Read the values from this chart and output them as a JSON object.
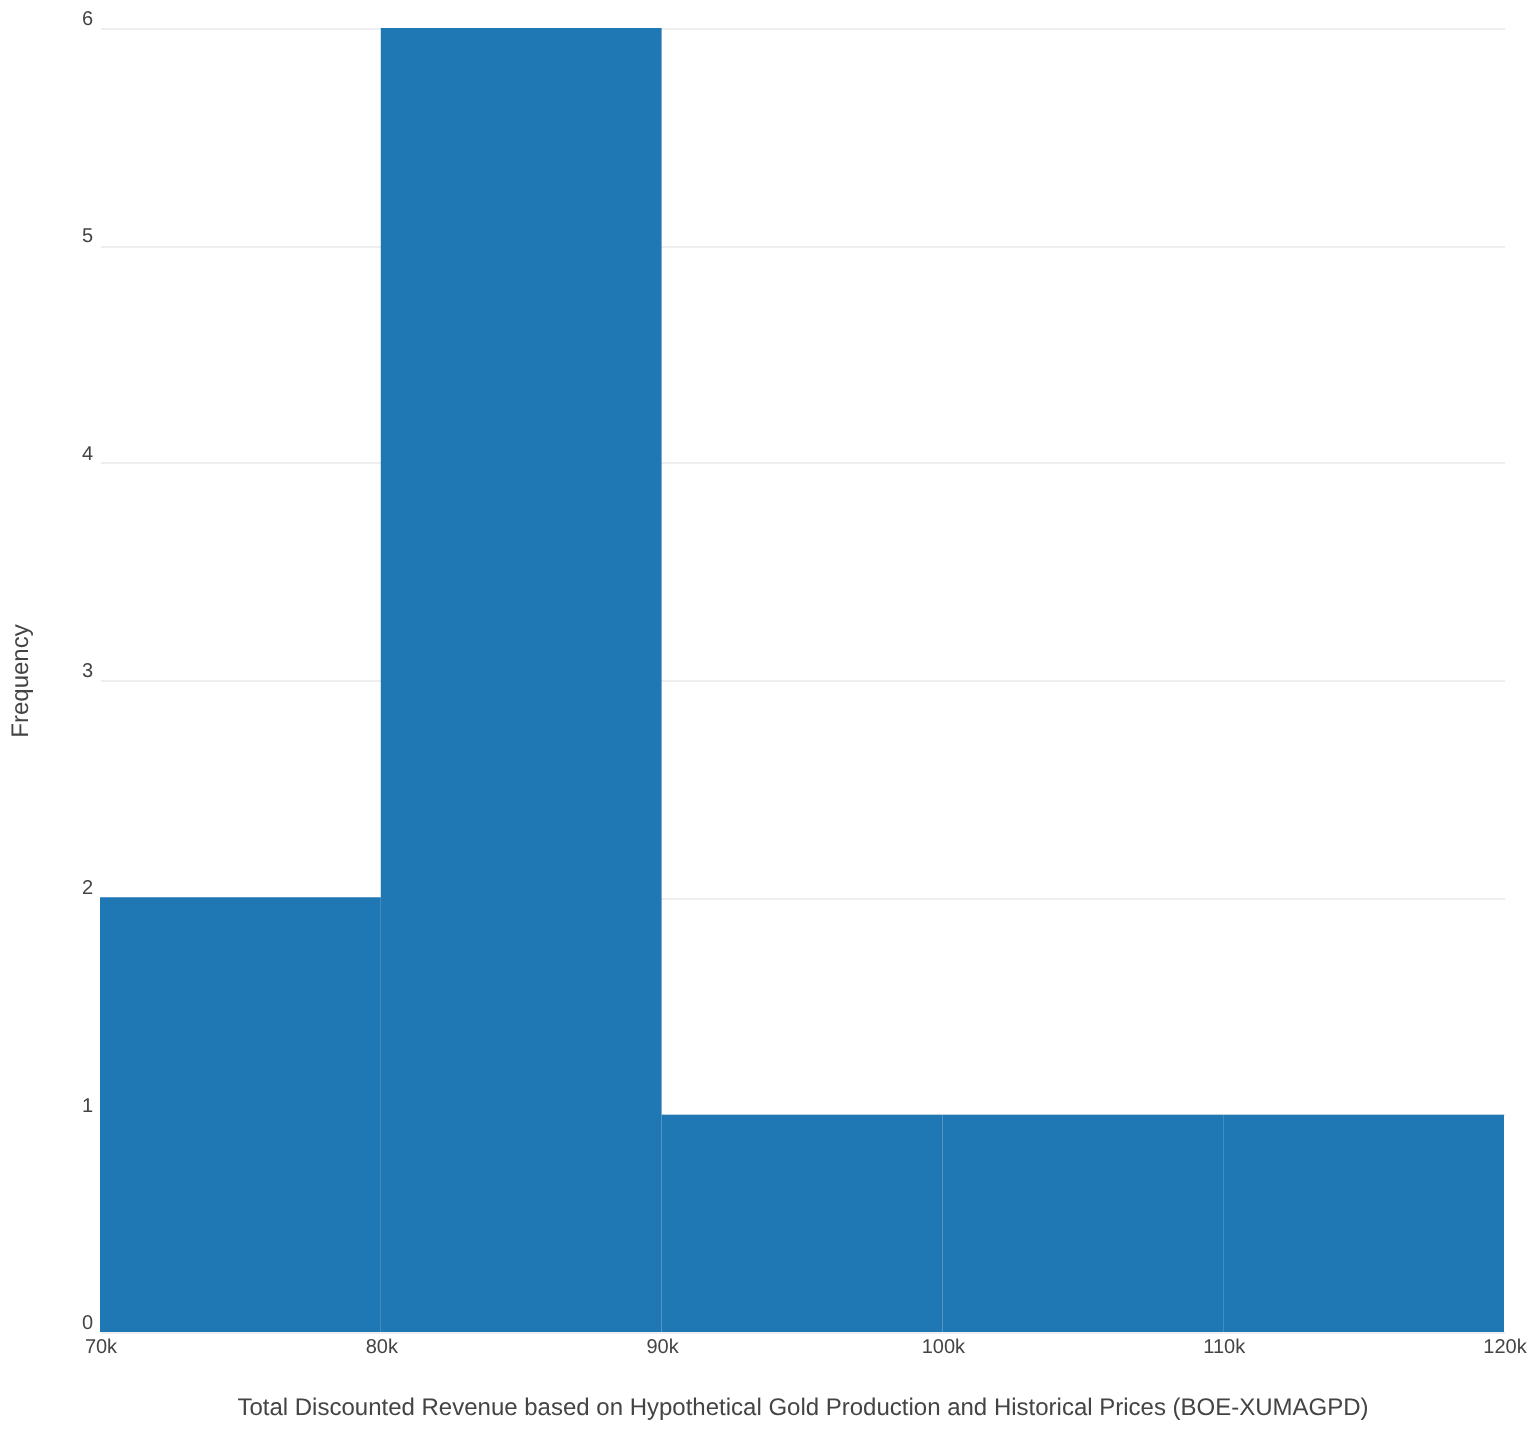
{
  "chart_data": {
    "type": "histogram",
    "xlabel": "Total Discounted Revenue based on Hypothetical Gold Production and Historical Prices (BOE-XUMAGPD)",
    "ylabel": "Frequency",
    "bins": [
      70000,
      80000,
      90000,
      100000,
      110000,
      120000
    ],
    "values": [
      2,
      6,
      1,
      1,
      1
    ],
    "color": "#1f77b4",
    "xlim": [
      70000,
      120000
    ],
    "xticks": [
      {
        "value": 70000,
        "label": "70k"
      },
      {
        "value": 80000,
        "label": "80k"
      },
      {
        "value": 90000,
        "label": "90k"
      },
      {
        "value": 100000,
        "label": "100k"
      },
      {
        "value": 110000,
        "label": "110k"
      },
      {
        "value": 120000,
        "label": "120k"
      }
    ],
    "ylim": [
      0,
      6
    ],
    "yticks": [
      0,
      1,
      2,
      3,
      4,
      5,
      6
    ],
    "grid": "y"
  }
}
